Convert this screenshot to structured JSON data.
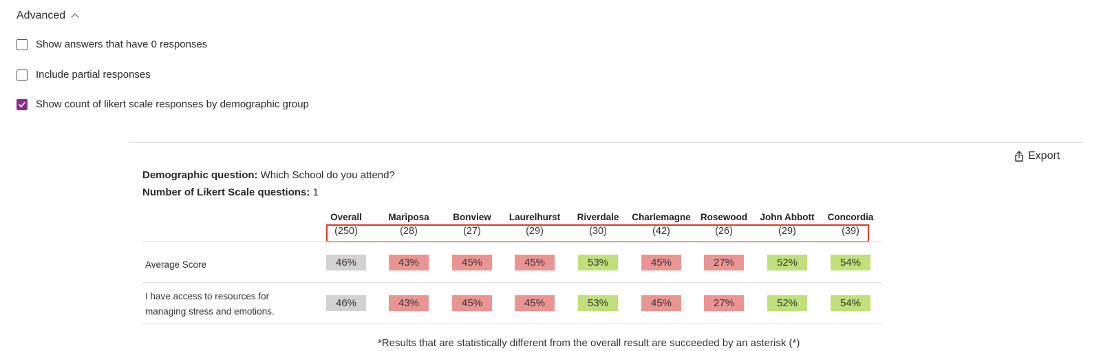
{
  "advanced": {
    "label": "Advanced"
  },
  "options": [
    {
      "label": "Show answers that have 0 responses",
      "checked": false
    },
    {
      "label": "Include partial responses",
      "checked": false
    },
    {
      "label": "Show count of likert scale responses by demographic group",
      "checked": true
    }
  ],
  "export": {
    "label": "Export"
  },
  "meta": {
    "question_label": "Demographic question:",
    "question_value": "Which School do you attend?",
    "likert_label": "Number of Likert Scale questions:",
    "likert_value": "1"
  },
  "table": {
    "columns": [
      {
        "name": "Overall",
        "count": "(250)"
      },
      {
        "name": "Mariposa",
        "count": "(28)"
      },
      {
        "name": "Bonview",
        "count": "(27)"
      },
      {
        "name": "Laurelhurst",
        "count": "(29)"
      },
      {
        "name": "Riverdale",
        "count": "(30)"
      },
      {
        "name": "Charlemagne",
        "count": "(42)"
      },
      {
        "name": "Rosewood",
        "count": "(26)"
      },
      {
        "name": "John Abbott",
        "count": "(29)"
      },
      {
        "name": "Concordia",
        "count": "(39)"
      }
    ],
    "rows": [
      {
        "label_lines": [
          "Average Score"
        ],
        "values": [
          "46%",
          "43%",
          "45%",
          "45%",
          "53%",
          "45%",
          "27%",
          "52%",
          "54%"
        ]
      },
      {
        "label_lines": [
          "I have access to resources for",
          "managing stress and emotions."
        ],
        "values": [
          "46%",
          "43%",
          "45%",
          "45%",
          "53%",
          "45%",
          "27%",
          "52%",
          "54%"
        ]
      }
    ],
    "cell_colors": [
      "#d3d1d1",
      "#eb9592",
      "#eb9592",
      "#eb9592",
      "#bfe07a",
      "#eb9592",
      "#eb9592",
      "#bfe07a",
      "#bfe07a"
    ]
  },
  "footnote": "*Results that are statistically different from the overall result are succeeded by an asterisk (*)"
}
